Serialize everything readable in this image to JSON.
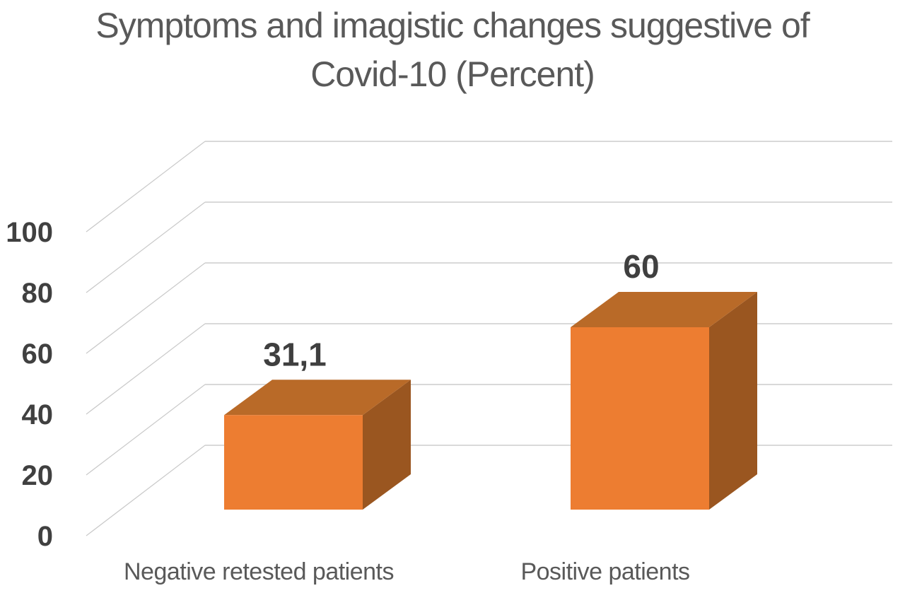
{
  "title_lines": [
    "Symptoms and imagistic changes suggestive of",
    "Covid-10 (Percent)"
  ],
  "colors": {
    "background": "#FFFFFF",
    "bar_front": "#ED7D31",
    "bar_top": "#B96A28",
    "bar_side": "#9A5620",
    "gridline_back": "#D9D9D9",
    "gridline_side": "#C9C9C9",
    "title_text": "#595959",
    "axis_text": "#404040",
    "data_label_text": "#3F3F3F",
    "category_text": "#595959"
  },
  "chart_data": {
    "type": "bar",
    "projection": "3d",
    "title": "Symptoms and imagistic changes suggestive of Covid-10 (Percent)",
    "categories": [
      "Negative retested patients",
      "Positive patients"
    ],
    "values": [
      31.1,
      60
    ],
    "data_labels": [
      "31,1",
      "60"
    ],
    "yticks": [
      0,
      20,
      40,
      60,
      80,
      100
    ],
    "ylim": [
      0,
      100
    ],
    "xlabel": "",
    "ylabel": "",
    "grid": true,
    "legend": false,
    "bar_color": "#ED7D31"
  }
}
